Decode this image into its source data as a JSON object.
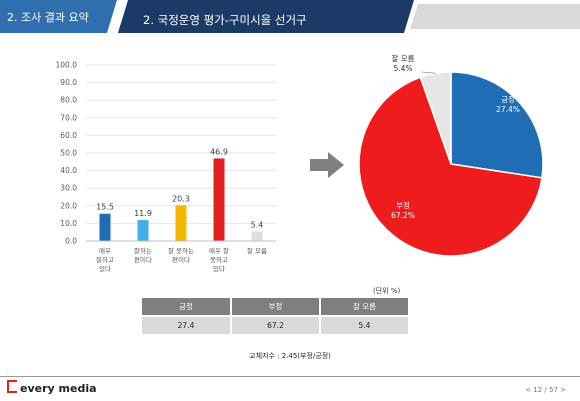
{
  "header": {
    "section_label": "2. 조사 결과 요약",
    "title": "2. 국정운영 평가-구미시을 선거구"
  },
  "chart_data": [
    {
      "type": "bar",
      "categories": [
        [
          "매우",
          "잘하고",
          "있다"
        ],
        [
          "잘하는",
          "편이다"
        ],
        [
          "잘 못하는",
          "편이다"
        ],
        [
          "매우 잘",
          "못하고",
          "있다"
        ],
        [
          "잘 모름"
        ]
      ],
      "values": [
        15.5,
        11.9,
        20.3,
        46.9,
        5.4
      ],
      "value_labels": [
        "15.5",
        "11.9",
        "20.3",
        "46.9",
        "5.4"
      ],
      "colors": [
        "#1f6db5",
        "#41b0e8",
        "#f5b800",
        "#e32020",
        "#dedede"
      ],
      "yticks": [
        "0.0",
        "10.0",
        "20.0",
        "30.0",
        "40.0",
        "50.0",
        "60.0",
        "70.0",
        "80.0",
        "90.0",
        "100.0"
      ],
      "ylim": [
        0,
        100
      ],
      "title": "",
      "xlabel": "",
      "ylabel": ""
    },
    {
      "type": "pie",
      "slices": [
        {
          "label": "긍정",
          "value": 27.4,
          "value_label": "27.4%",
          "color": "#1f6db5"
        },
        {
          "label": "부정",
          "value": 67.2,
          "value_label": "67.2%",
          "color": "#ee1c1c"
        },
        {
          "label": "잘 모름",
          "value": 5.4,
          "value_label": "5.4%",
          "color": "#e6e6e6"
        }
      ]
    }
  ],
  "unit_label": "(단위 %)",
  "table": {
    "headers": [
      "긍정",
      "부정",
      "잘 모름"
    ],
    "values": [
      "27.4",
      "67.2",
      "5.4"
    ]
  },
  "note": "교체지수 : 2.45(부정/긍정)",
  "footer": {
    "logo_text": "every media",
    "page": "< 12 / 57 >"
  },
  "colors": {
    "header_dark": "#1b3a66",
    "header_blue": "#2f6fae",
    "arrow": "#808080"
  }
}
